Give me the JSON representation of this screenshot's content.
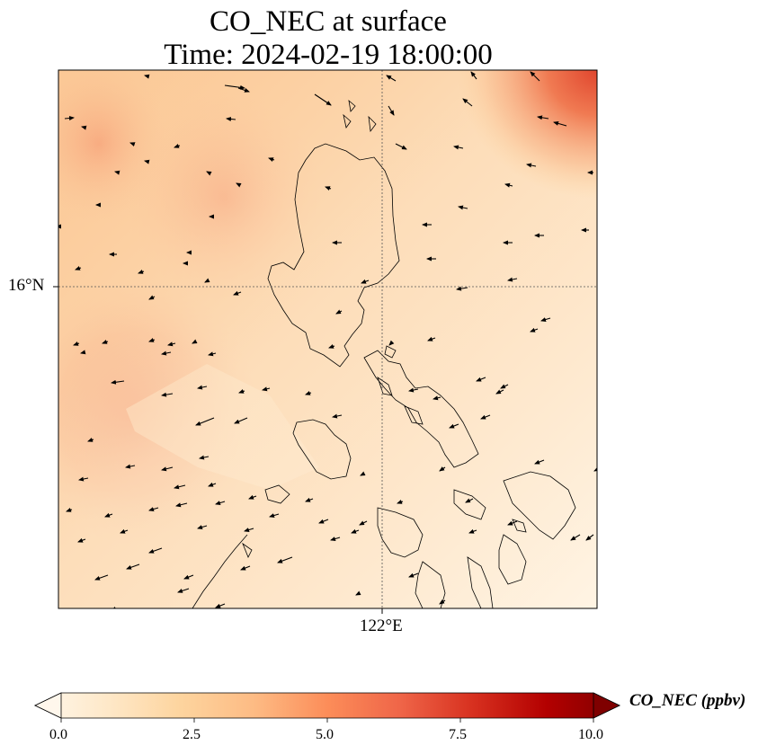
{
  "title": {
    "line1": "CO_NEC at surface",
    "line2": "Time: 2024-02-19 18:00:00"
  },
  "axes": {
    "lat_tick_label": "16°N",
    "lon_tick_label": "122°E",
    "gridlines": "dotted"
  },
  "colorbar": {
    "label": "CO_NEC (ppbv)",
    "ticks": [
      "0.0",
      "2.5",
      "5.0",
      "7.5",
      "10.0"
    ],
    "min": 0,
    "max": 10,
    "colormap": "OrRd",
    "colors": [
      "#fff7ec",
      "#fee8c8",
      "#fdd49e",
      "#fdbb84",
      "#fc8d59",
      "#ef6548",
      "#d7301f",
      "#b30000",
      "#7f0000"
    ],
    "extend": "both"
  },
  "field": {
    "variable": "CO_NEC",
    "level": "surface",
    "range_approx": [
      0.5,
      6.5
    ],
    "high_values": [
      "top-right corner",
      "west over the sea"
    ],
    "low_values": [
      "south-east over the islands"
    ]
  },
  "overlays": [
    "coastlines",
    "wind vectors"
  ],
  "wind": {
    "prevailing_direction": "from north-east (arrows point west-south-west)"
  }
}
